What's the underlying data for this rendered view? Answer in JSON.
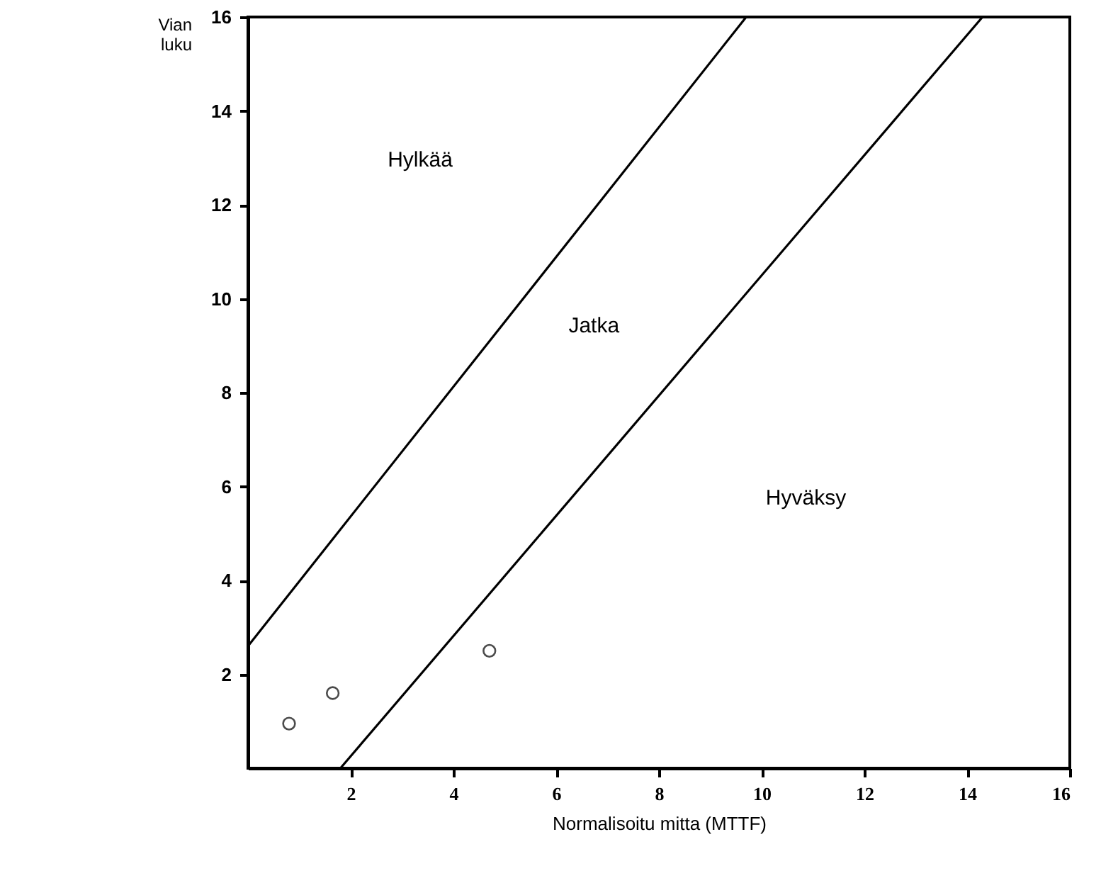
{
  "chart_data": {
    "type": "line",
    "xlabel": "Normalisoitu mitta (MTTF)",
    "ylabel": "Vian luku",
    "xlim": [
      0,
      16
    ],
    "ylim": [
      0,
      16
    ],
    "xticks": [
      2,
      4,
      6,
      8,
      10,
      12,
      14,
      16
    ],
    "yticks": [
      2,
      4,
      6,
      8,
      10,
      12,
      14,
      16
    ],
    "grid": false,
    "marker": "none",
    "line_style": "solid",
    "series": [
      {
        "color": "#000000",
        "x": [
          0,
          9.7
        ],
        "values": [
          2.6,
          16
        ]
      },
      {
        "color": "#000000",
        "x": [
          1.8,
          14.3
        ],
        "values": [
          0,
          16
        ]
      },
      {
        "type": "scatter",
        "marker": "circle",
        "color": "#000000",
        "x": [
          0.8,
          1.65,
          4.7
        ],
        "values": [
          0.95,
          1.6,
          2.5
        ]
      }
    ],
    "annotations": [
      "Hylkää",
      "Jatka",
      "Hyväksy"
    ]
  }
}
